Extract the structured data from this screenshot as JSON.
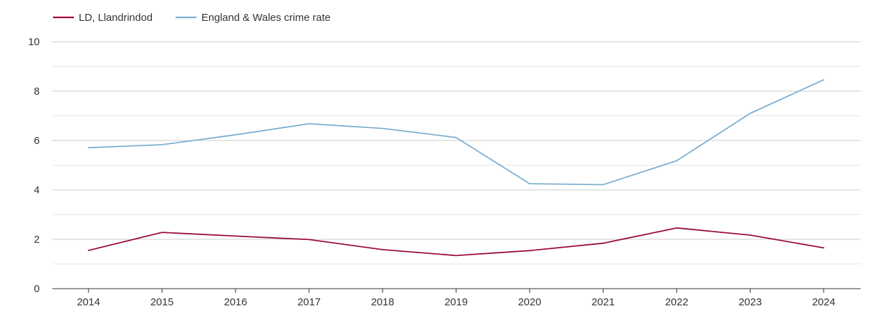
{
  "chart_data": {
    "type": "line",
    "title": "",
    "xlabel": "",
    "ylabel": "",
    "x": [
      "2014",
      "2015",
      "2016",
      "2017",
      "2018",
      "2019",
      "2020",
      "2021",
      "2022",
      "2023",
      "2024"
    ],
    "ylim": [
      0,
      10
    ],
    "yticks": [
      0,
      2,
      4,
      6,
      8,
      10
    ],
    "grid": true,
    "legend_position": "top-left",
    "series": [
      {
        "name": "LD, Llandrindod",
        "color": "#9b0a35",
        "values": [
          1.55,
          2.28,
          2.13,
          1.99,
          1.58,
          1.34,
          1.54,
          1.84,
          2.46,
          2.17,
          1.65
        ]
      },
      {
        "name": "England & Wales crime rate",
        "color": "#7bafd0",
        "values": [
          5.71,
          5.83,
          6.23,
          6.68,
          6.49,
          6.12,
          4.25,
          4.21,
          5.18,
          7.1,
          8.46
        ]
      }
    ]
  }
}
